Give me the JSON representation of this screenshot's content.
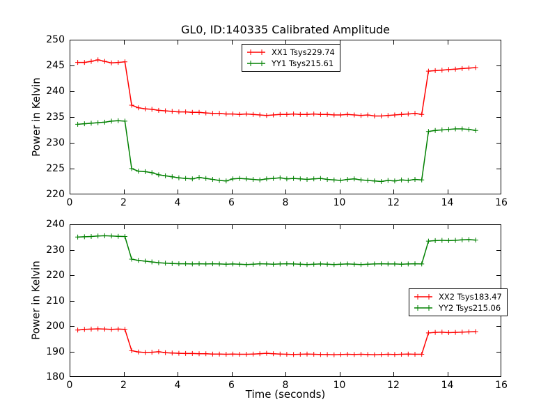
{
  "colors": {
    "background": "#ffffff",
    "axis": "#000000",
    "xx": "#ff0000",
    "yy": "#008000"
  },
  "chart_data": [
    {
      "type": "line",
      "title": "GL0, ID:140335 Calibrated Amplitude",
      "ylabel": "Power in Kelvin",
      "xlim": [
        0,
        16
      ],
      "ylim": [
        220,
        250
      ],
      "xticks": [
        0,
        2,
        4,
        6,
        8,
        10,
        12,
        14,
        16
      ],
      "yticks": [
        220,
        225,
        230,
        235,
        240,
        245,
        250
      ],
      "grid": false,
      "legend_position": "upper center",
      "marker": "plus",
      "x": [
        0.3,
        0.55,
        0.8,
        1.05,
        1.3,
        1.55,
        1.8,
        2.05,
        2.3,
        2.55,
        2.8,
        3.05,
        3.3,
        3.55,
        3.8,
        4.05,
        4.3,
        4.55,
        4.8,
        5.05,
        5.3,
        5.55,
        5.8,
        6.05,
        6.3,
        6.55,
        6.8,
        7.05,
        7.3,
        7.55,
        7.8,
        8.05,
        8.3,
        8.55,
        8.8,
        9.05,
        9.3,
        9.55,
        9.8,
        10.05,
        10.3,
        10.55,
        10.8,
        11.05,
        11.3,
        11.55,
        11.8,
        12.05,
        12.3,
        12.55,
        12.8,
        13.05,
        13.3,
        13.55,
        13.8,
        14.05,
        14.3,
        14.55,
        14.8,
        15.05
      ],
      "series": [
        {
          "name": "XX1",
          "label": "XX1 Tsys229.74",
          "tsys": 229.74,
          "color": "#ff0000",
          "values": [
            245.6,
            245.6,
            245.8,
            246.1,
            245.8,
            245.5,
            245.6,
            245.7,
            237.3,
            236.8,
            236.6,
            236.5,
            236.3,
            236.2,
            236.1,
            236.0,
            236.0,
            235.9,
            235.9,
            235.8,
            235.7,
            235.7,
            235.6,
            235.6,
            235.5,
            235.6,
            235.5,
            235.4,
            235.3,
            235.4,
            235.5,
            235.5,
            235.6,
            235.5,
            235.5,
            235.6,
            235.5,
            235.5,
            235.4,
            235.4,
            235.5,
            235.4,
            235.3,
            235.4,
            235.2,
            235.2,
            235.3,
            235.4,
            235.5,
            235.6,
            235.7,
            235.5,
            243.9,
            244.0,
            244.1,
            244.2,
            244.3,
            244.4,
            244.5,
            244.6
          ]
        },
        {
          "name": "YY1",
          "label": "YY1 Tsys215.61",
          "tsys": 215.61,
          "color": "#008000",
          "values": [
            233.6,
            233.7,
            233.8,
            233.9,
            234.0,
            234.2,
            234.3,
            234.2,
            225.0,
            224.5,
            224.4,
            224.2,
            223.8,
            223.6,
            223.4,
            223.2,
            223.1,
            223.0,
            223.3,
            223.1,
            222.9,
            222.7,
            222.6,
            223.0,
            223.1,
            223.0,
            222.9,
            222.8,
            223.0,
            223.1,
            223.2,
            223.0,
            223.1,
            223.0,
            222.9,
            223.0,
            223.1,
            222.9,
            222.8,
            222.7,
            222.9,
            223.0,
            222.8,
            222.7,
            222.6,
            222.5,
            222.7,
            222.6,
            222.8,
            222.7,
            222.9,
            222.8,
            232.2,
            232.4,
            232.5,
            232.6,
            232.7,
            232.7,
            232.6,
            232.4
          ]
        }
      ]
    },
    {
      "type": "line",
      "ylabel": "Power in Kelvin",
      "xlabel": "Time (seconds)",
      "xlim": [
        0,
        16
      ],
      "ylim": [
        180,
        240
      ],
      "xticks": [
        0,
        2,
        4,
        6,
        8,
        10,
        12,
        14,
        16
      ],
      "yticks": [
        180,
        190,
        200,
        210,
        220,
        230,
        240
      ],
      "grid": false,
      "legend_position": "center right",
      "marker": "plus",
      "x": [
        0.3,
        0.55,
        0.8,
        1.05,
        1.3,
        1.55,
        1.8,
        2.05,
        2.3,
        2.55,
        2.8,
        3.05,
        3.3,
        3.55,
        3.8,
        4.05,
        4.3,
        4.55,
        4.8,
        5.05,
        5.3,
        5.55,
        5.8,
        6.05,
        6.3,
        6.55,
        6.8,
        7.05,
        7.3,
        7.55,
        7.8,
        8.05,
        8.3,
        8.55,
        8.8,
        9.05,
        9.3,
        9.55,
        9.8,
        10.05,
        10.3,
        10.55,
        10.8,
        11.05,
        11.3,
        11.55,
        11.8,
        12.05,
        12.3,
        12.55,
        12.8,
        13.05,
        13.3,
        13.55,
        13.8,
        14.05,
        14.3,
        14.55,
        14.8,
        15.05
      ],
      "series": [
        {
          "name": "XX2",
          "label": "XX2 Tsys183.47",
          "tsys": 183.47,
          "color": "#ff0000",
          "values": [
            198.4,
            198.7,
            198.8,
            198.9,
            198.8,
            198.7,
            198.8,
            198.7,
            190.3,
            189.8,
            189.6,
            189.7,
            189.9,
            189.5,
            189.4,
            189.3,
            189.2,
            189.2,
            189.1,
            189.1,
            189.0,
            189.0,
            188.9,
            189.0,
            188.9,
            188.9,
            189.0,
            189.1,
            189.3,
            189.1,
            189.0,
            188.9,
            188.8,
            188.9,
            189.0,
            188.9,
            188.8,
            188.8,
            188.7,
            188.8,
            188.9,
            188.8,
            188.9,
            188.8,
            188.7,
            188.8,
            188.9,
            188.8,
            188.9,
            189.0,
            188.9,
            188.9,
            197.3,
            197.5,
            197.6,
            197.4,
            197.5,
            197.6,
            197.7,
            197.8
          ]
        },
        {
          "name": "YY2",
          "label": "YY2 Tsys215.06",
          "tsys": 215.06,
          "color": "#008000",
          "values": [
            235.0,
            235.1,
            235.2,
            235.4,
            235.5,
            235.4,
            235.3,
            235.2,
            226.3,
            225.8,
            225.5,
            225.2,
            224.9,
            224.7,
            224.6,
            224.5,
            224.5,
            224.4,
            224.5,
            224.4,
            224.5,
            224.4,
            224.3,
            224.4,
            224.3,
            224.2,
            224.3,
            224.5,
            224.4,
            224.3,
            224.4,
            224.5,
            224.4,
            224.3,
            224.2,
            224.3,
            224.4,
            224.3,
            224.2,
            224.3,
            224.4,
            224.3,
            224.2,
            224.3,
            224.4,
            224.5,
            224.4,
            224.4,
            224.3,
            224.4,
            224.5,
            224.4,
            233.4,
            233.6,
            233.7,
            233.6,
            233.7,
            233.9,
            234.0,
            233.8
          ]
        }
      ]
    }
  ]
}
